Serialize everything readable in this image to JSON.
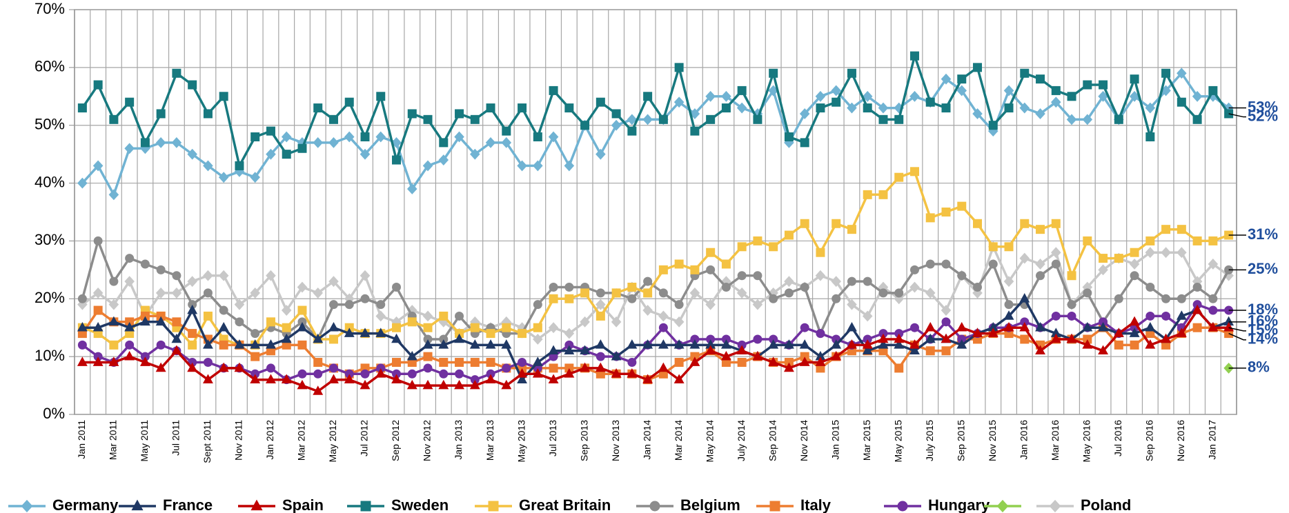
{
  "chart_data": {
    "type": "line",
    "categories": [
      "Jan 2011",
      null,
      "Mar 2011",
      null,
      "May 2011",
      null,
      "Jul 2011",
      null,
      "Sept 2011",
      null,
      "Nov 2011",
      null,
      "Jan 2012",
      null,
      "Mar 2012",
      null,
      "May 2012",
      null,
      "Jul 2012",
      null,
      "Sep 2012",
      null,
      "Nov 2012",
      null,
      "Jan 2013",
      null,
      "Mar 2013",
      null,
      "May 2013",
      null,
      "Jul 2013",
      null,
      "Sep 2013",
      null,
      "Nov 2013",
      null,
      "Jan 2014",
      null,
      "Mar 2014",
      null,
      "May 2014",
      null,
      "July 2014",
      null,
      "Sep 2014",
      null,
      "Nov 2014",
      null,
      "Jan 2015",
      null,
      "Mar 2015",
      null,
      "May 2015",
      null,
      "July 2015",
      null,
      "Sep 2015",
      null,
      "Nov 2015",
      null,
      "Jan 2016",
      null,
      "Mar 2016",
      null,
      "May 2016",
      null,
      "Jul 2016",
      null,
      "Sep 2016",
      null,
      "Nov 2016",
      null,
      "Jan 2017",
      null
    ],
    "ylim": [
      0,
      70
    ],
    "yticks": [
      {
        "value": 0,
        "label": "0%"
      },
      {
        "value": 10,
        "label": "10%"
      },
      {
        "value": 20,
        "label": "20%"
      },
      {
        "value": 30,
        "label": "30%"
      },
      {
        "value": 40,
        "label": "40%"
      },
      {
        "value": 50,
        "label": "50%"
      },
      {
        "value": 60,
        "label": "60%"
      },
      {
        "value": 70,
        "label": "70%"
      }
    ],
    "grid": true,
    "series": [
      {
        "name": "Germany",
        "color": "#70b3d3",
        "marker": "diamond",
        "end_label": "53%",
        "values": [
          40,
          43,
          38,
          46,
          46,
          47,
          47,
          45,
          43,
          41,
          42,
          41,
          45,
          48,
          47,
          47,
          47,
          48,
          45,
          48,
          47,
          39,
          43,
          44,
          48,
          45,
          47,
          47,
          43,
          43,
          48,
          43,
          50,
          45,
          50,
          51,
          51,
          51,
          54,
          52,
          55,
          55,
          53,
          52,
          56,
          47,
          52,
          55,
          56,
          53,
          55,
          53,
          53,
          55,
          54,
          58,
          56,
          52,
          49,
          56,
          53,
          52,
          54,
          51,
          51,
          55,
          51,
          55,
          53,
          56,
          59,
          55,
          55,
          53
        ]
      },
      {
        "name": "France",
        "color": "#1f3864",
        "marker": "triangle",
        "end_label": "16%",
        "values": [
          15,
          15,
          16,
          15,
          16,
          16,
          13,
          18,
          12,
          15,
          12,
          12,
          12,
          13,
          15,
          13,
          15,
          14,
          14,
          14,
          13,
          10,
          12,
          12,
          13,
          12,
          12,
          12,
          6,
          9,
          11,
          11,
          11,
          12,
          10,
          12,
          12,
          12,
          12,
          12,
          12,
          12,
          11,
          10,
          12,
          12,
          12,
          10,
          12,
          15,
          11,
          12,
          12,
          11,
          13,
          13,
          12,
          14,
          15,
          17,
          20,
          15,
          14,
          13,
          15,
          15,
          14,
          14,
          15,
          13,
          17,
          18,
          15,
          16
        ]
      },
      {
        "name": "Spain",
        "color": "#c00000",
        "marker": "triangle",
        "end_label": "15%",
        "values": [
          9,
          9,
          9,
          10,
          9,
          8,
          11,
          8,
          6,
          8,
          8,
          6,
          6,
          6,
          5,
          4,
          6,
          6,
          5,
          7,
          6,
          5,
          5,
          5,
          5,
          5,
          6,
          5,
          7,
          7,
          6,
          7,
          8,
          8,
          7,
          7,
          6,
          8,
          6,
          9,
          11,
          10,
          11,
          10,
          9,
          8,
          9,
          9,
          10,
          12,
          12,
          13,
          13,
          12,
          15,
          13,
          15,
          14,
          14,
          15,
          15,
          11,
          13,
          13,
          12,
          11,
          14,
          16,
          12,
          13,
          14,
          18,
          15,
          15
        ]
      },
      {
        "name": "Sweden",
        "color": "#17797f",
        "marker": "square",
        "end_label": "52%",
        "values": [
          53,
          57,
          51,
          54,
          47,
          52,
          59,
          57,
          52,
          55,
          43,
          48,
          49,
          45,
          46,
          53,
          51,
          54,
          48,
          55,
          44,
          52,
          51,
          47,
          52,
          51,
          53,
          49,
          53,
          48,
          56,
          53,
          50,
          54,
          52,
          49,
          55,
          51,
          60,
          49,
          51,
          53,
          56,
          51,
          59,
          48,
          47,
          53,
          54,
          59,
          53,
          51,
          51,
          62,
          54,
          53,
          58,
          60,
          50,
          53,
          59,
          58,
          56,
          55,
          57,
          57,
          51,
          58,
          48,
          59,
          54,
          51,
          56,
          52
        ]
      },
      {
        "name": "Great Britain",
        "color": "#f4c242",
        "marker": "square",
        "end_label": "31%",
        "values": [
          15,
          14,
          12,
          14,
          18,
          17,
          15,
          12,
          17,
          13,
          12,
          12,
          16,
          15,
          18,
          13,
          13,
          15,
          14,
          14,
          15,
          16,
          15,
          17,
          14,
          15,
          14,
          15,
          14,
          15,
          20,
          20,
          21,
          17,
          21,
          22,
          21,
          25,
          26,
          25,
          28,
          26,
          29,
          30,
          29,
          31,
          33,
          28,
          33,
          32,
          38,
          38,
          41,
          42,
          34,
          35,
          36,
          33,
          29,
          29,
          33,
          32,
          33,
          24,
          30,
          27,
          27,
          28,
          30,
          32,
          32,
          30,
          30,
          31
        ]
      },
      {
        "name": "Belgium",
        "color": "#8c8c8c",
        "marker": "circle",
        "end_label": "25%",
        "values": [
          20,
          30,
          23,
          27,
          26,
          25,
          24,
          19,
          21,
          18,
          16,
          14,
          15,
          14,
          16,
          13,
          19,
          19,
          20,
          19,
          22,
          17,
          13,
          13,
          17,
          14,
          15,
          14,
          14,
          19,
          22,
          22,
          22,
          21,
          21,
          20,
          23,
          21,
          19,
          24,
          25,
          22,
          24,
          24,
          20,
          21,
          22,
          14,
          20,
          23,
          23,
          21,
          21,
          25,
          26,
          26,
          24,
          22,
          26,
          19,
          19,
          24,
          26,
          19,
          21,
          16,
          20,
          24,
          22,
          20,
          20,
          22,
          20,
          25
        ]
      },
      {
        "name": "Italy",
        "color": "#ed7d31",
        "marker": "square",
        "end_label": "14%",
        "values": [
          14,
          18,
          16,
          16,
          17,
          17,
          16,
          14,
          13,
          12,
          12,
          10,
          11,
          12,
          12,
          9,
          8,
          7,
          8,
          8,
          9,
          9,
          10,
          9,
          9,
          9,
          9,
          8,
          8,
          8,
          8,
          8,
          8,
          7,
          7,
          7,
          6,
          7,
          9,
          10,
          11,
          9,
          9,
          10,
          9,
          9,
          10,
          8,
          10,
          11,
          11,
          11,
          8,
          12,
          11,
          11,
          13,
          13,
          14,
          14,
          13,
          12,
          13,
          13,
          13,
          15,
          12,
          12,
          14,
          12,
          14,
          15,
          15,
          14
        ]
      },
      {
        "name": "Hungary",
        "color": "#7030a0",
        "marker": "circle",
        "end_label": "18%",
        "values": [
          12,
          10,
          9,
          12,
          10,
          12,
          11,
          9,
          9,
          8,
          8,
          7,
          8,
          6,
          7,
          7,
          8,
          7,
          7,
          8,
          7,
          7,
          8,
          7,
          7,
          6,
          7,
          8,
          9,
          8,
          10,
          12,
          11,
          10,
          10,
          9,
          12,
          15,
          12,
          13,
          13,
          13,
          12,
          13,
          13,
          12,
          15,
          14,
          13,
          12,
          13,
          14,
          14,
          15,
          13,
          16,
          13,
          14,
          15,
          15,
          16,
          15,
          17,
          17,
          15,
          16,
          14,
          15,
          17,
          17,
          15,
          19,
          18,
          18
        ]
      },
      {
        "color": "#92d050",
        "marker": "diamond",
        "end_label": "8%",
        "values": [
          null,
          null,
          null,
          null,
          null,
          null,
          null,
          null,
          null,
          null,
          null,
          null,
          null,
          null,
          null,
          null,
          null,
          null,
          null,
          null,
          null,
          null,
          null,
          null,
          null,
          null,
          null,
          null,
          null,
          null,
          null,
          null,
          null,
          null,
          null,
          null,
          null,
          null,
          null,
          null,
          null,
          null,
          null,
          null,
          null,
          null,
          null,
          null,
          null,
          null,
          null,
          null,
          null,
          null,
          null,
          null,
          null,
          null,
          null,
          null,
          null,
          null,
          null,
          null,
          null,
          null,
          null,
          null,
          null,
          null,
          null,
          null,
          null,
          8
        ]
      },
      {
        "name": "Poland",
        "color": "#c8c8c8",
        "marker": "diamond",
        "values": [
          19,
          21,
          19,
          23,
          17,
          21,
          21,
          23,
          24,
          24,
          19,
          21,
          24,
          18,
          22,
          21,
          23,
          20,
          24,
          17,
          16,
          18,
          17,
          16,
          14,
          16,
          15,
          16,
          15,
          13,
          15,
          14,
          16,
          19,
          16,
          22,
          18,
          17,
          16,
          21,
          19,
          23,
          21,
          19,
          21,
          23,
          22,
          24,
          23,
          19,
          17,
          22,
          20,
          22,
          21,
          18,
          24,
          21,
          29,
          23,
          27,
          26,
          28,
          19,
          22,
          25,
          27,
          26,
          28,
          28,
          28,
          23,
          26,
          24
        ]
      }
    ]
  }
}
